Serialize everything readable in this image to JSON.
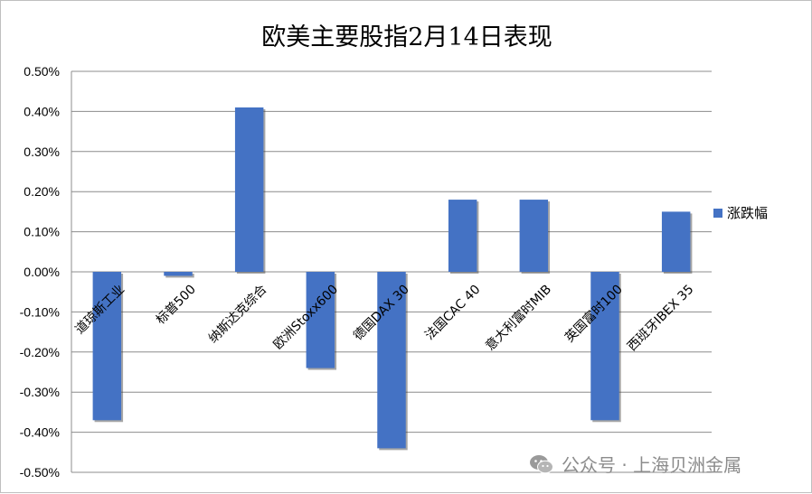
{
  "chart_data": {
    "type": "bar",
    "title": "欧美主要股指2月14日表现",
    "categories": [
      "道琼斯工业",
      "标普500",
      "纳斯达克综合",
      "欧洲Stoxx600",
      "德国DAX 30",
      "法国CAC 40",
      "意大利富时MIB",
      "英国富时100",
      "西班牙IBEX 35"
    ],
    "series": [
      {
        "name": "涨跌幅",
        "values": [
          -0.37,
          -0.01,
          0.41,
          -0.24,
          -0.44,
          0.18,
          0.18,
          -0.37,
          0.15
        ]
      }
    ],
    "ylim": [
      -0.5,
      0.5
    ],
    "y_ticks": [
      "0.50%",
      "0.40%",
      "0.30%",
      "0.20%",
      "0.10%",
      "0.00%",
      "-0.10%",
      "-0.20%",
      "-0.30%",
      "-0.40%",
      "-0.50%"
    ],
    "grid": true,
    "legend_position": "right",
    "bar_color": "#4472c4"
  },
  "watermark": {
    "text": "公众号 · 上海贝洲金属",
    "icon": "wechat-icon"
  }
}
